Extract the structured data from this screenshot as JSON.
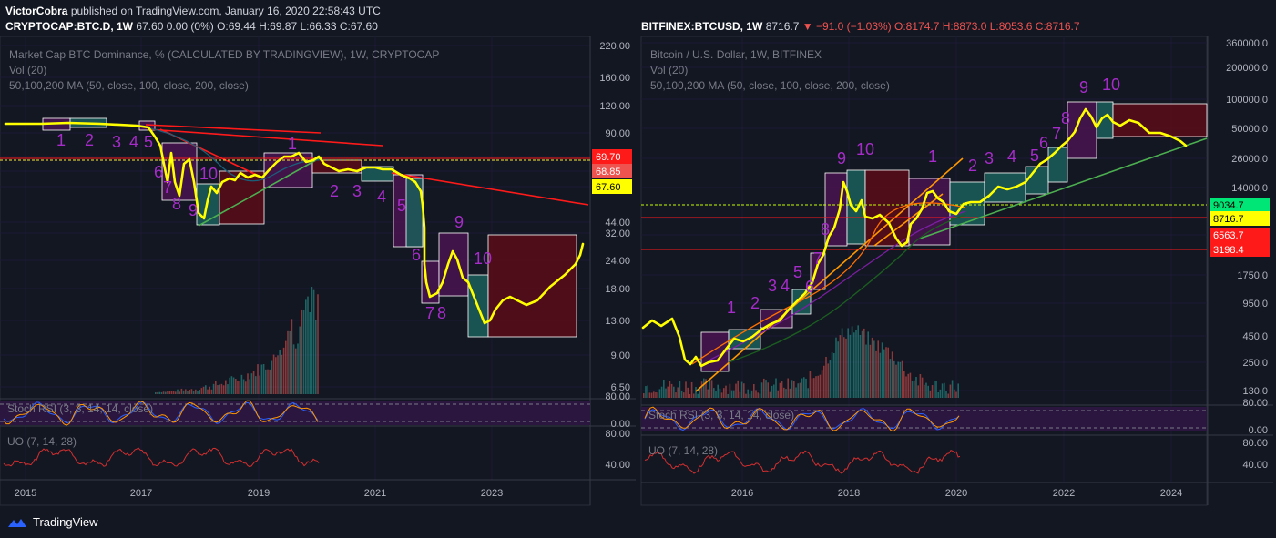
{
  "header": {
    "author": "VictorCobra",
    "published": "published on TradingView.com, January 16, 2020 22:58:43 UTC"
  },
  "left_symbol_line": {
    "symbol": "CRYPTOCAP:BTC.D, 1W",
    "values": "67.60 0.00 (0%) O:69.44 H:69.87 L:66.33 C:67.60"
  },
  "right_symbol_line": {
    "symbol": "BITFINEX:BTCUSD, 1W",
    "price": "8716.7",
    "change": "▼ −91.0 (−1.03%)",
    "ohlc": "O:8174.7 H:8873.0 L:8053.6 C:8716.7"
  },
  "footer": {
    "brand": "TradingView"
  },
  "colors": {
    "bg": "#131722",
    "grid": "#1e1a35",
    "price": "#ffff00",
    "wave": "#9c27b0",
    "up": "#26a69a",
    "down": "#ef5350",
    "ma": "#4caf50",
    "trend": "#ff1a1a",
    "orange": "#ff9800"
  },
  "chart_data": [
    {
      "type": "line",
      "title": "Market Cap BTC Dominance, % (CALCULATED BY TRADINGVIEW), 1W, CRYPTOCAP",
      "indicators": [
        "Vol (20)",
        "50,100,200 MA (50, close, 100, close, 200, close)"
      ],
      "y_scale": "log",
      "y_ticks": [
        "220.00",
        "160.00",
        "120.00",
        "90.00",
        "69.70",
        "68.85",
        "67.60",
        "44.00",
        "32.00",
        "24.00",
        "18.00",
        "13.00",
        "9.00",
        "6.50"
      ],
      "x_ticks": [
        "2015",
        "2017",
        "2019",
        "2021",
        "2023"
      ],
      "price_labels": [
        {
          "text": "69.70",
          "color": "#ff1a1a"
        },
        {
          "text": "68.85",
          "color": "#ef5350"
        },
        {
          "text": "67.60",
          "color": "#ffff00"
        }
      ],
      "wave_labels": [
        "1",
        "2",
        "3",
        "4",
        "5",
        "6",
        "7",
        "8",
        "9",
        "10",
        "1",
        "2",
        "3",
        "4",
        "5",
        "6",
        "7",
        "8",
        "9",
        "10"
      ],
      "series": [
        {
          "x": [
            2014.6,
            2015.5,
            2016.2,
            2016.7,
            2017.1,
            2017.3,
            2017.5,
            2017.7,
            2017.9,
            2018.1,
            2018.3,
            2018.6,
            2018.9,
            2019.2,
            2019.4,
            2019.6,
            2019.9,
            2020.3,
            2020.8,
            2021.2,
            2021.5,
            2021.7,
            2021.8,
            2022.0,
            2022.2,
            2022.4,
            2022.6,
            2022.8,
            2023.0,
            2023.3,
            2023.6,
            2023.9,
            2024.2,
            2024.5,
            2024.8,
            2025.2,
            2025.5
          ],
          "y": [
            96,
            97,
            96,
            95,
            93,
            77,
            55,
            40,
            50,
            34,
            38,
            45,
            46,
            54,
            62,
            65,
            64,
            60,
            61,
            59,
            57,
            44,
            38,
            27,
            18,
            18,
            21,
            25,
            14,
            12,
            14,
            15,
            14,
            14,
            16,
            21,
            27
          ]
        }
      ],
      "sub_indicators": [
        {
          "name": "Stoch RSI (3, 3, 14, 14, close)",
          "ticks": [
            "80.00",
            "0.00"
          ]
        },
        {
          "name": "UO (7, 14, 28)",
          "ticks": [
            "80.00",
            "40.00"
          ]
        }
      ]
    },
    {
      "type": "line",
      "title": "Bitcoin / U.S. Dollar, 1W, BITFINEX",
      "indicators": [
        "Vol (20)",
        "50,100,200 MA (50, close, 100, close, 200, close)"
      ],
      "y_scale": "log",
      "y_ticks": [
        "360000.0",
        "200000.0",
        "100000.0",
        "50000.0",
        "26000.0",
        "14000.0",
        "9034.7",
        "8716.7",
        "6563.7",
        "3198.4",
        "1750.0",
        "950.0",
        "450.0",
        "250.0",
        "130.0"
      ],
      "x_ticks": [
        "2016",
        "2018",
        "2020",
        "2022",
        "2024"
      ],
      "price_labels": [
        {
          "text": "9034.7",
          "color": "#00e676"
        },
        {
          "text": "8716.7",
          "color": "#ffff00"
        },
        {
          "text": "6563.7",
          "color": "#ff1a1a"
        },
        {
          "text": "3198.4",
          "color": "#ff1a1a"
        }
      ],
      "wave_labels": [
        "1",
        "2",
        "3",
        "4",
        "5",
        "6",
        "7",
        "8",
        "9",
        "10",
        "1",
        "2",
        "3",
        "4",
        "5",
        "6",
        "7",
        "8",
        "9",
        "10"
      ],
      "series": [
        {
          "x": [
            2014.2,
            2014.6,
            2015.0,
            2015.4,
            2015.8,
            2016.2,
            2016.6,
            2017.0,
            2017.3,
            2017.6,
            2017.9,
            2018.1,
            2018.4,
            2018.8,
            2019.0,
            2019.3,
            2019.5,
            2019.8,
            2020.0,
            2020.5,
            2021.0,
            2021.5,
            2021.9,
            2022.2,
            2022.4,
            2022.7,
            2023.0,
            2023.5,
            2024.0,
            2024.3
          ],
          "y": [
            600,
            500,
            280,
            240,
            380,
            420,
            650,
            950,
            1500,
            4000,
            17000,
            9000,
            7500,
            6500,
            3600,
            7000,
            11000,
            8500,
            8700,
            10500,
            12000,
            18000,
            30000,
            60000,
            80000,
            50000,
            55000,
            45000,
            40000,
            32000
          ]
        }
      ],
      "sub_indicators": [
        {
          "name": "Stoch RSI (3, 3, 14, 14, close)",
          "ticks": [
            "80.00",
            "0.00"
          ]
        },
        {
          "name": "UO (7, 14, 28)",
          "ticks": [
            "80.00",
            "40.00"
          ]
        }
      ]
    }
  ]
}
